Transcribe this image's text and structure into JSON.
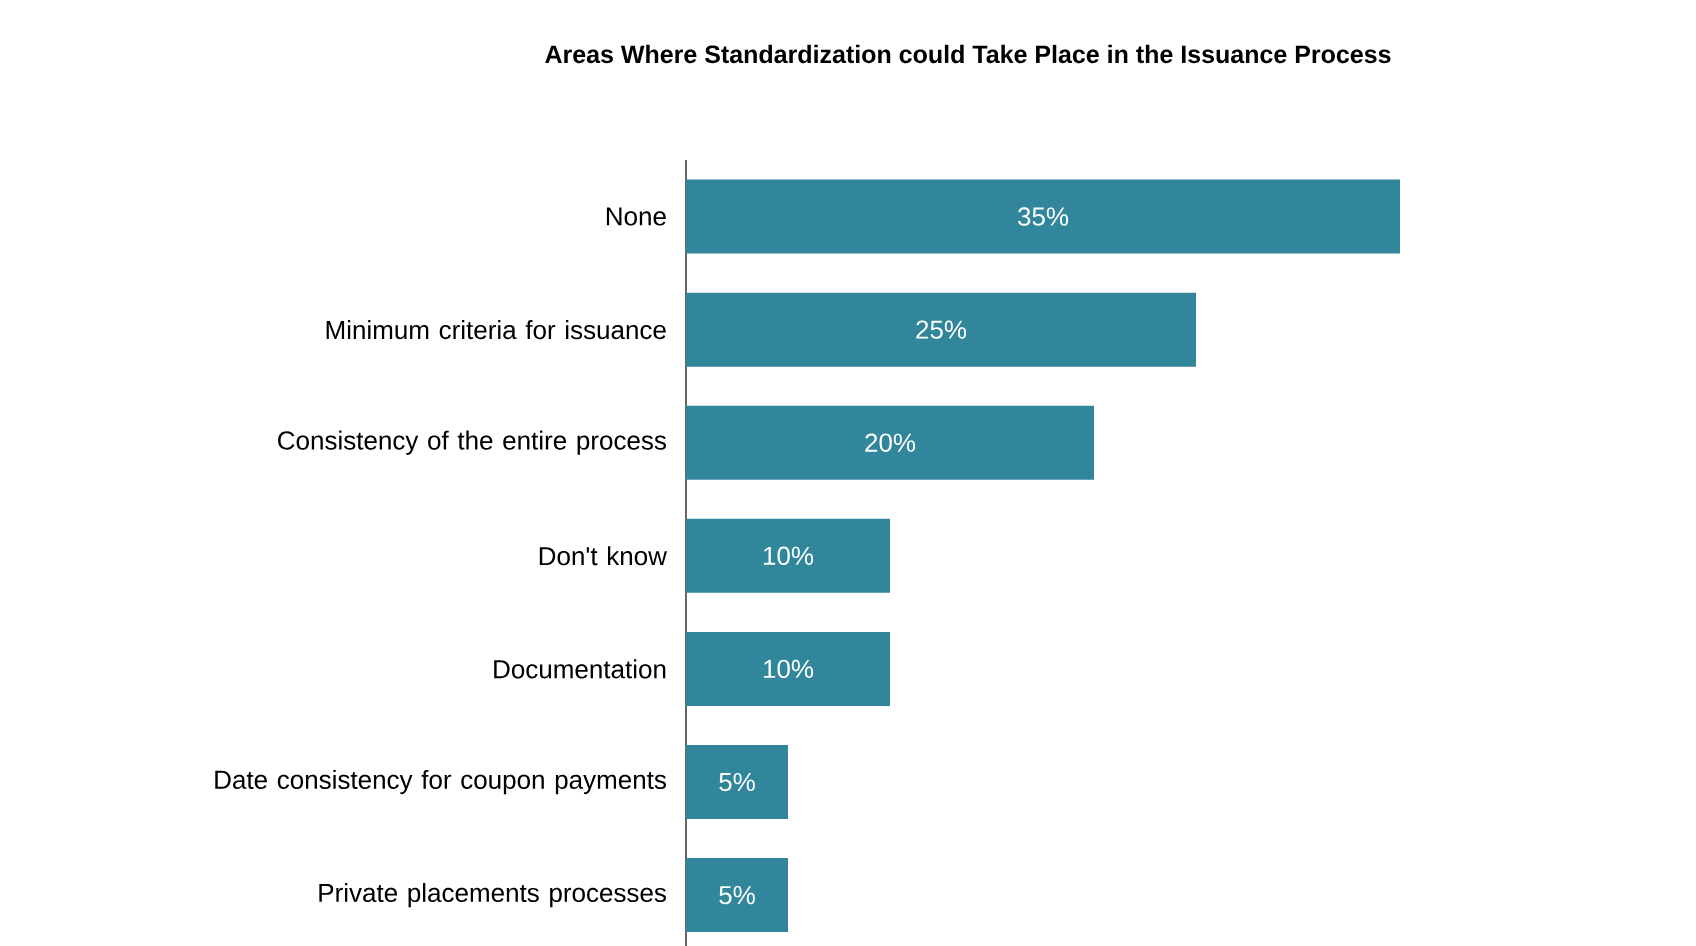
{
  "chart_data": {
    "type": "bar",
    "orientation": "horizontal",
    "title": "Areas Where Standardization could Take Place in the Issuance Process",
    "categories": [
      "None",
      "Minimum criteria for issuance",
      "Consistency of the entire process",
      "Don't know",
      "Documentation",
      "Date consistency for coupon payments",
      "Private placements processes"
    ],
    "values": [
      35,
      25,
      20,
      10,
      10,
      5,
      5
    ],
    "value_labels": [
      "35%",
      "25%",
      "20%",
      "10%",
      "10%",
      "5%",
      "5%"
    ],
    "color": "#31869b"
  }
}
